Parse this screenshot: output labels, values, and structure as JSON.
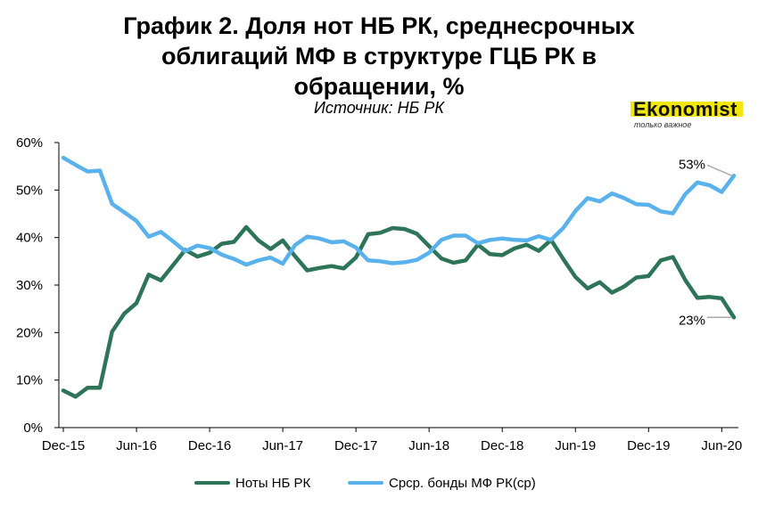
{
  "header": {
    "title_lines": [
      "График 2. Доля нот НБ РК, среднесрочных",
      "облигаций МФ в структуре ГЦБ РК в",
      "обращении, %"
    ],
    "source": "Источник: НБ РК"
  },
  "logo": {
    "name": "Ekonomist",
    "tagline": "только важное"
  },
  "chart_data": {
    "type": "line",
    "title": "График 2. Доля нот НБ РК, среднесрочных облигаций МФ в структуре ГЦБ РК в обращении, %",
    "xlabel": "",
    "ylabel": "",
    "x_tick_labels": [
      "Dec-15",
      "Jun-16",
      "Dec-16",
      "Jun-17",
      "Dec-17",
      "Jun-18",
      "Dec-18",
      "Jun-19",
      "Dec-19",
      "Jun-20"
    ],
    "y_tick_labels": [
      "0%",
      "10%",
      "20%",
      "30%",
      "40%",
      "50%",
      "60%"
    ],
    "ylim": [
      0,
      60
    ],
    "grid": false,
    "legend_position": "bottom",
    "x": [
      "Dec-15",
      "Jan-16",
      "Feb-16",
      "Mar-16",
      "Apr-16",
      "May-16",
      "Jun-16",
      "Jul-16",
      "Aug-16",
      "Sep-16",
      "Oct-16",
      "Nov-16",
      "Dec-16",
      "Jan-17",
      "Feb-17",
      "Mar-17",
      "Apr-17",
      "May-17",
      "Jun-17",
      "Jul-17",
      "Aug-17",
      "Sep-17",
      "Oct-17",
      "Nov-17",
      "Dec-17",
      "Jan-18",
      "Feb-18",
      "Mar-18",
      "Apr-18",
      "May-18",
      "Jun-18",
      "Jul-18",
      "Aug-18",
      "Sep-18",
      "Oct-18",
      "Nov-18",
      "Dec-18",
      "Jan-19",
      "Feb-19",
      "Mar-19",
      "Apr-19",
      "May-19",
      "Jun-19",
      "Jul-19",
      "Aug-19",
      "Sep-19",
      "Oct-19",
      "Nov-19",
      "Dec-19",
      "Jan-20",
      "Feb-20",
      "Mar-20",
      "Apr-20",
      "May-20",
      "Jun-20",
      "Jul-20"
    ],
    "series": [
      {
        "name": "Ноты НБ РК",
        "color": "#2e7458",
        "values": [
          7.8,
          6.5,
          8.4,
          8.4,
          20.2,
          24.0,
          26.2,
          32.2,
          31.0,
          34.2,
          37.4,
          36.0,
          36.8,
          38.7,
          39.1,
          42.2,
          39.4,
          37.6,
          39.4,
          36.1,
          33.1,
          33.6,
          34.0,
          33.5,
          35.8,
          40.7,
          41.0,
          42.0,
          41.8,
          40.8,
          38.2,
          35.6,
          34.7,
          35.2,
          38.5,
          36.5,
          36.3,
          37.7,
          38.5,
          37.2,
          39.5,
          35.5,
          31.7,
          29.3,
          30.6,
          28.4,
          29.7,
          31.6,
          31.9,
          35.2,
          35.9,
          31.1,
          27.3,
          27.5,
          27.2,
          23.2
        ],
        "end_label": "23%"
      },
      {
        "name": "Срср. бонды МФ РК(ср)",
        "color": "#5ab2ec",
        "values": [
          56.8,
          55.3,
          53.9,
          54.1,
          47.1,
          45.3,
          43.5,
          40.2,
          41.2,
          39.2,
          37.1,
          38.3,
          37.8,
          36.4,
          35.5,
          34.3,
          35.2,
          35.8,
          34.5,
          38.4,
          40.2,
          39.8,
          39.0,
          39.2,
          37.9,
          35.2,
          35.0,
          34.6,
          34.8,
          35.3,
          36.8,
          39.5,
          40.4,
          40.4,
          38.8,
          39.5,
          39.8,
          39.5,
          39.4,
          40.3,
          39.5,
          42.0,
          45.6,
          48.3,
          47.6,
          49.3,
          48.3,
          47.0,
          46.9,
          45.5,
          45.1,
          49.1,
          51.6,
          51.0,
          49.6,
          53.0
        ],
        "end_label": "53%"
      }
    ]
  }
}
